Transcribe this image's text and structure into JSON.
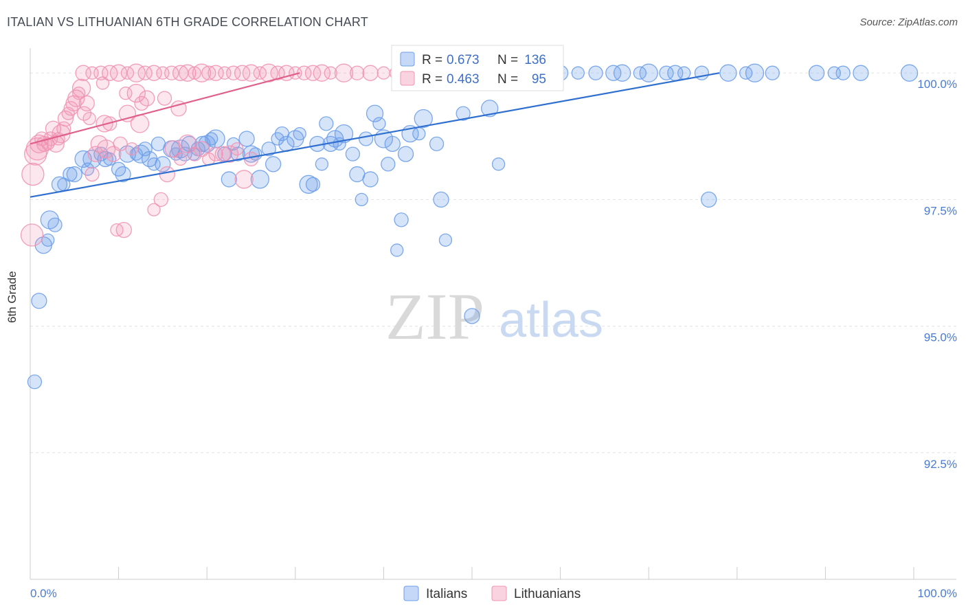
{
  "title": "ITALIAN VS LITHUANIAN 6TH GRADE CORRELATION CHART",
  "source": "Source: ZipAtlas.com",
  "watermark": {
    "zip": "ZIP",
    "atlas": "atlas"
  },
  "chart_data": {
    "type": "scatter",
    "xlabel": "",
    "ylabel": "6th Grade",
    "xlim": [
      0,
      100
    ],
    "ylim": [
      90.0,
      100.6
    ],
    "x_tick_labels": [
      {
        "value": 0,
        "label": "0.0%"
      },
      {
        "value": 100,
        "label": "100.0%"
      }
    ],
    "y_tick_labels": [
      {
        "value": 100.0,
        "label": "100.0%"
      },
      {
        "value": 97.5,
        "label": "97.5%"
      },
      {
        "value": 95.0,
        "label": "95.0%"
      },
      {
        "value": 92.5,
        "label": "92.5%"
      }
    ],
    "grid": "horizontal dashed",
    "legend": {
      "placement": "top-center",
      "entries": [
        {
          "r_label": "R =",
          "r_value": "0.673",
          "n_label": "N =",
          "n_value": "136"
        },
        {
          "r_label": "R =",
          "r_value": "0.463",
          "n_label": "N =",
          "n_value": "95"
        }
      ]
    },
    "bottom_legend": [
      "Italians",
      "Lithuanians"
    ],
    "series": [
      {
        "name": "Italians",
        "color": "#6d9eea",
        "line_color": "#2f6fd0",
        "trend": {
          "x": [
            0,
            78
          ],
          "y": [
            97.55,
            100.0
          ]
        },
        "points": [
          [
            0.5,
            93.9
          ],
          [
            1.0,
            95.5
          ],
          [
            1.5,
            96.6
          ],
          [
            2.0,
            96.7
          ],
          [
            2.2,
            97.1
          ],
          [
            2.8,
            97.0
          ],
          [
            3.3,
            97.8
          ],
          [
            3.8,
            97.8
          ],
          [
            4.5,
            98.0
          ],
          [
            5.0,
            98.0
          ],
          [
            6.0,
            98.3
          ],
          [
            6.5,
            98.1
          ],
          [
            7.0,
            98.3
          ],
          [
            8.0,
            98.4
          ],
          [
            8.5,
            98.3
          ],
          [
            9.0,
            98.3
          ],
          [
            10.0,
            98.1
          ],
          [
            10.5,
            98.0
          ],
          [
            11.0,
            98.4
          ],
          [
            12.0,
            98.4
          ],
          [
            12.5,
            98.4
          ],
          [
            13.0,
            98.5
          ],
          [
            13.5,
            98.3
          ],
          [
            14.0,
            98.2
          ],
          [
            14.5,
            98.6
          ],
          [
            15.0,
            98.2
          ],
          [
            16.0,
            98.5
          ],
          [
            16.5,
            98.4
          ],
          [
            17.0,
            98.5
          ],
          [
            17.5,
            98.4
          ],
          [
            18.0,
            98.6
          ],
          [
            18.5,
            98.4
          ],
          [
            19.0,
            98.5
          ],
          [
            19.5,
            98.6
          ],
          [
            20.0,
            98.6
          ],
          [
            20.5,
            98.7
          ],
          [
            21.0,
            98.7
          ],
          [
            22.0,
            98.4
          ],
          [
            22.5,
            97.9
          ],
          [
            23.0,
            98.6
          ],
          [
            23.5,
            98.4
          ],
          [
            24.5,
            98.7
          ],
          [
            25.0,
            98.4
          ],
          [
            25.5,
            98.4
          ],
          [
            26.0,
            97.9
          ],
          [
            27.0,
            98.5
          ],
          [
            27.5,
            98.2
          ],
          [
            28.0,
            98.7
          ],
          [
            28.5,
            98.8
          ],
          [
            29.0,
            98.6
          ],
          [
            30.0,
            98.7
          ],
          [
            30.5,
            98.8
          ],
          [
            31.5,
            97.8
          ],
          [
            32.0,
            97.8
          ],
          [
            32.5,
            98.6
          ],
          [
            33.0,
            98.2
          ],
          [
            33.5,
            99.0
          ],
          [
            34.0,
            98.6
          ],
          [
            34.5,
            98.7
          ],
          [
            35.0,
            98.6
          ],
          [
            35.5,
            98.8
          ],
          [
            36.5,
            98.4
          ],
          [
            37.0,
            98.0
          ],
          [
            37.5,
            97.5
          ],
          [
            38.0,
            98.7
          ],
          [
            38.5,
            97.9
          ],
          [
            39.0,
            99.2
          ],
          [
            39.5,
            99.0
          ],
          [
            40.0,
            98.7
          ],
          [
            40.5,
            98.2
          ],
          [
            41.0,
            98.6
          ],
          [
            41.5,
            96.5
          ],
          [
            42.0,
            97.1
          ],
          [
            42.5,
            98.4
          ],
          [
            43.0,
            98.8
          ],
          [
            44.0,
            98.8
          ],
          [
            44.5,
            99.1
          ],
          [
            46.0,
            98.6
          ],
          [
            46.5,
            97.5
          ],
          [
            47.0,
            96.7
          ],
          [
            49.0,
            99.2
          ],
          [
            50.0,
            95.2
          ],
          [
            52.0,
            99.3
          ],
          [
            53.0,
            98.2
          ],
          [
            56.0,
            100.0
          ],
          [
            58.0,
            100.0
          ],
          [
            60.0,
            100.0
          ],
          [
            62.0,
            100.0
          ],
          [
            64.0,
            100.0
          ],
          [
            66.0,
            100.0
          ],
          [
            67.0,
            100.0
          ],
          [
            69.0,
            100.0
          ],
          [
            70.0,
            100.0
          ],
          [
            72.0,
            100.0
          ],
          [
            73.0,
            100.0
          ],
          [
            74.0,
            100.0
          ],
          [
            76.0,
            100.0
          ],
          [
            76.8,
            97.5
          ],
          [
            79.0,
            100.0
          ],
          [
            81.0,
            100.0
          ],
          [
            82.0,
            100.0
          ],
          [
            84.0,
            100.0
          ],
          [
            89.0,
            100.0
          ],
          [
            91.0,
            100.0
          ],
          [
            92.0,
            100.0
          ],
          [
            94.0,
            100.0
          ],
          [
            99.5,
            100.0
          ],
          [
            45.0,
            100.0
          ],
          [
            47.5,
            100.0
          ],
          [
            50.5,
            100.0
          ],
          [
            54.0,
            100.0
          ],
          [
            57.0,
            100.0
          ]
        ]
      },
      {
        "name": "Lithuanians",
        "color": "#f193b2",
        "line_color": "#e0608b",
        "trend": {
          "x": [
            0,
            30.5
          ],
          "y": [
            98.6,
            100.0
          ]
        },
        "points": [
          [
            0.2,
            96.8
          ],
          [
            0.3,
            98.0
          ],
          [
            0.6,
            98.4
          ],
          [
            0.8,
            98.5
          ],
          [
            1.0,
            98.6
          ],
          [
            1.3,
            98.7
          ],
          [
            1.6,
            98.6
          ],
          [
            2.0,
            98.6
          ],
          [
            2.3,
            98.7
          ],
          [
            2.6,
            98.9
          ],
          [
            2.9,
            98.6
          ],
          [
            3.2,
            98.7
          ],
          [
            3.5,
            98.8
          ],
          [
            3.8,
            98.9
          ],
          [
            4.0,
            99.1
          ],
          [
            4.3,
            99.2
          ],
          [
            4.6,
            99.3
          ],
          [
            4.9,
            99.4
          ],
          [
            5.2,
            99.5
          ],
          [
            5.5,
            99.6
          ],
          [
            5.8,
            99.7
          ],
          [
            6.1,
            99.2
          ],
          [
            6.4,
            99.4
          ],
          [
            6.7,
            99.1
          ],
          [
            7.0,
            98.0
          ],
          [
            7.4,
            98.4
          ],
          [
            7.8,
            98.6
          ],
          [
            8.2,
            99.8
          ],
          [
            8.6,
            98.5
          ],
          [
            9.0,
            99.0
          ],
          [
            9.4,
            98.4
          ],
          [
            9.8,
            96.9
          ],
          [
            10.2,
            98.6
          ],
          [
            10.6,
            96.9
          ],
          [
            11.0,
            99.2
          ],
          [
            11.5,
            98.5
          ],
          [
            12.0,
            99.6
          ],
          [
            12.6,
            99.4
          ],
          [
            13.2,
            99.5
          ],
          [
            14.0,
            97.3
          ],
          [
            14.8,
            97.5
          ],
          [
            15.5,
            98.0
          ],
          [
            16.2,
            98.5
          ],
          [
            17.0,
            98.3
          ],
          [
            17.8,
            98.6
          ],
          [
            18.6,
            98.4
          ],
          [
            19.4,
            98.5
          ],
          [
            20.2,
            98.3
          ],
          [
            21.0,
            98.4
          ],
          [
            21.8,
            98.4
          ],
          [
            22.6,
            98.4
          ],
          [
            23.4,
            98.5
          ],
          [
            24.2,
            97.9
          ],
          [
            25.0,
            98.3
          ],
          [
            6.0,
            100.0
          ],
          [
            7.0,
            100.0
          ],
          [
            8.0,
            100.0
          ],
          [
            9.0,
            100.0
          ],
          [
            10.0,
            100.0
          ],
          [
            11.0,
            100.0
          ],
          [
            12.0,
            100.0
          ],
          [
            13.0,
            100.0
          ],
          [
            14.0,
            100.0
          ],
          [
            15.0,
            100.0
          ],
          [
            16.0,
            100.0
          ],
          [
            17.0,
            100.0
          ],
          [
            17.8,
            100.0
          ],
          [
            18.6,
            100.0
          ],
          [
            19.4,
            100.0
          ],
          [
            20.2,
            100.0
          ],
          [
            21.0,
            100.0
          ],
          [
            22.0,
            100.0
          ],
          [
            23.0,
            100.0
          ],
          [
            24.0,
            100.0
          ],
          [
            25.0,
            100.0
          ],
          [
            26.0,
            100.0
          ],
          [
            27.0,
            100.0
          ],
          [
            28.0,
            100.0
          ],
          [
            29.0,
            100.0
          ],
          [
            30.0,
            100.0
          ],
          [
            31.0,
            100.0
          ],
          [
            32.0,
            100.0
          ],
          [
            33.0,
            100.0
          ],
          [
            34.0,
            100.0
          ],
          [
            35.5,
            100.0
          ],
          [
            37.0,
            100.0
          ],
          [
            38.5,
            100.0
          ],
          [
            40.0,
            100.0
          ],
          [
            41.5,
            100.0
          ],
          [
            43.0,
            100.0
          ],
          [
            8.4,
            99.0
          ],
          [
            10.8,
            99.6
          ],
          [
            12.4,
            99.0
          ],
          [
            15.2,
            99.5
          ],
          [
            16.8,
            99.3
          ]
        ]
      }
    ]
  }
}
